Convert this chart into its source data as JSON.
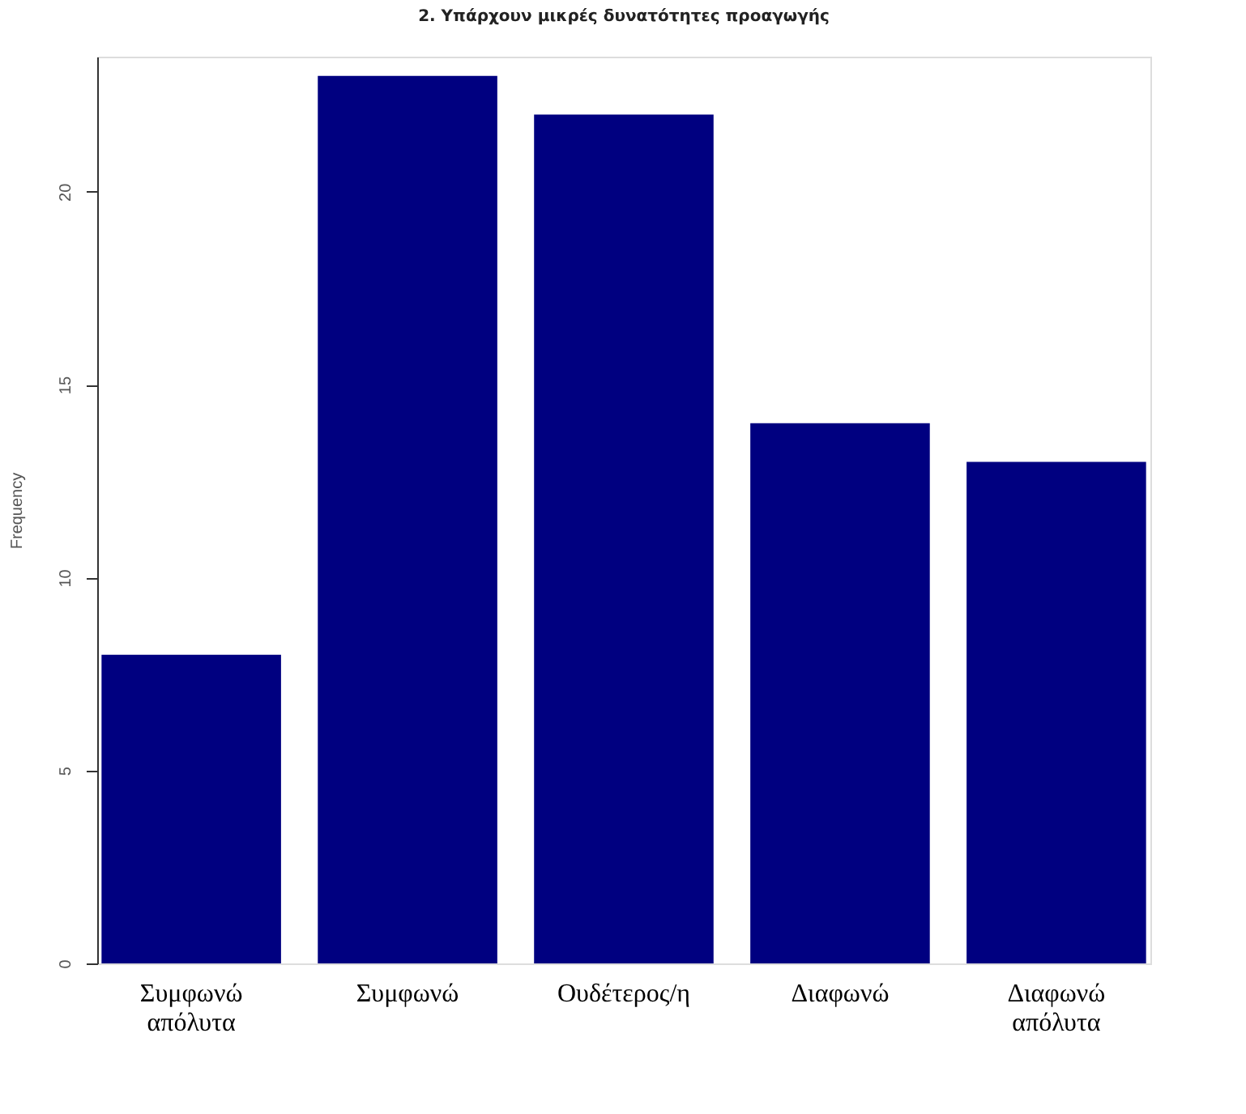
{
  "chart_data": {
    "type": "bar",
    "title": "2. Υπάρχουν μικρές δυνατότητες προαγωγής",
    "ylabel": "Frequency",
    "categories": [
      "Συμφωνώ απόλυτα",
      "Συμφωνώ",
      "Ουδέτερος/η",
      "Διαφωνώ",
      "Διαφωνώ απόλυτα"
    ],
    "values": [
      8,
      23,
      22,
      14,
      13
    ],
    "color": "#000080",
    "ylim": [
      0,
      23.5
    ],
    "yticks": [
      0,
      5,
      10,
      15,
      20
    ],
    "grid": false
  }
}
